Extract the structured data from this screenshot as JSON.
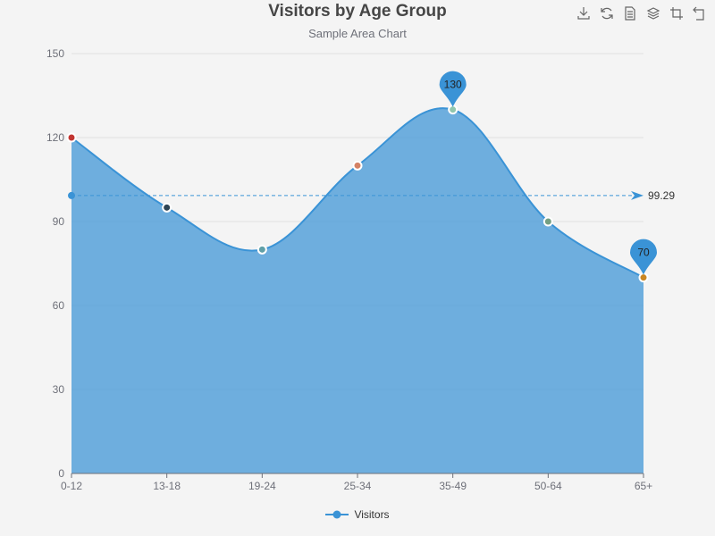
{
  "chart_data": {
    "type": "area",
    "title": "Visitors by Age Group",
    "subtitle": "Sample Area Chart",
    "categories": [
      "0-12",
      "13-18",
      "19-24",
      "25-34",
      "35-49",
      "50-64",
      "65+"
    ],
    "series": [
      {
        "name": "Visitors",
        "values": [
          120,
          95,
          80,
          110,
          130,
          90,
          70
        ],
        "color": "#3a93d6",
        "point_colors": [
          "#c23531",
          "#2f4554",
          "#61a0a8",
          "#d48265",
          "#91c7ae",
          "#749f83",
          "#ca8622"
        ]
      }
    ],
    "yticks": [
      0,
      30,
      60,
      90,
      120,
      150
    ],
    "ylim": [
      0,
      150
    ],
    "markline": {
      "type": "average",
      "value": 99.29,
      "label": "99.29"
    },
    "markpoints": [
      {
        "category": "35-49",
        "value": 130,
        "label": "130"
      },
      {
        "category": "65+",
        "value": 70,
        "label": "70"
      }
    ],
    "grid": "horizontal",
    "legend_position": "bottom-center",
    "xlabel": "",
    "ylabel": ""
  },
  "toolbox": {
    "icons": [
      "download-icon",
      "refresh-icon",
      "data-view-icon",
      "stack-icon",
      "restore-icon",
      "reset-icon"
    ]
  }
}
